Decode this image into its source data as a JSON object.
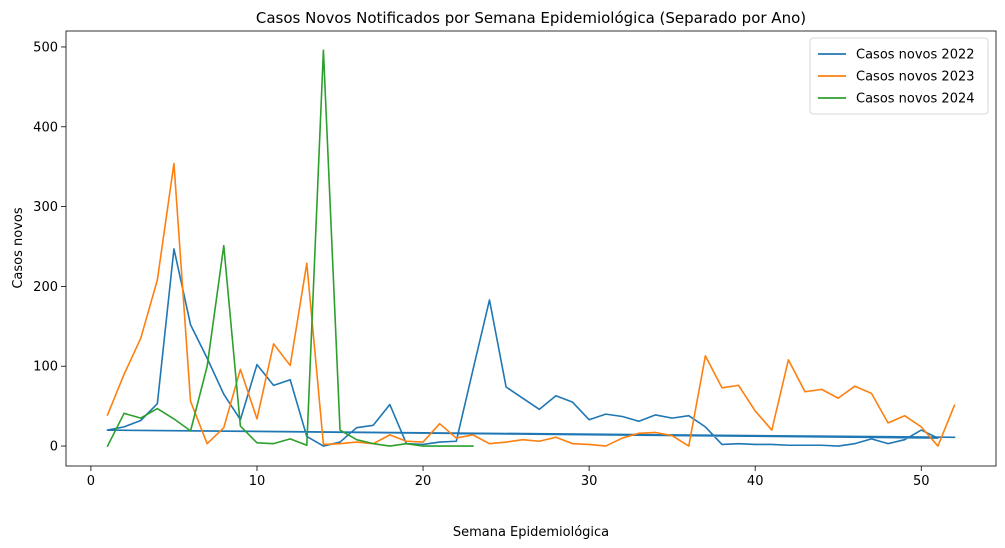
{
  "chart_data": {
    "type": "line",
    "title": "Casos Novos Notificados por Semana Epidemiológica (Separado por Ano)",
    "xlabel": "Semana Epidemiológica",
    "ylabel": "Casos novos",
    "xlim": [
      -1.5,
      54.5
    ],
    "ylim": [
      -25,
      520
    ],
    "xticks": [
      0,
      10,
      20,
      30,
      40,
      50
    ],
    "yticks": [
      0,
      100,
      200,
      300,
      400,
      500
    ],
    "grid": false,
    "legend_position": "top-right",
    "series": [
      {
        "name": "Casos novos 2022",
        "color": "#1f77b4",
        "points": [
          [
            1,
            20
          ],
          [
            2,
            24
          ],
          [
            3,
            32
          ],
          [
            4,
            53
          ],
          [
            5,
            247
          ],
          [
            6,
            152
          ],
          [
            7,
            110
          ],
          [
            8,
            65
          ],
          [
            9,
            33
          ],
          [
            10,
            102
          ],
          [
            11,
            76
          ],
          [
            12,
            83
          ],
          [
            13,
            12
          ],
          [
            14,
            0
          ],
          [
            15,
            5
          ],
          [
            16,
            23
          ],
          [
            17,
            26
          ],
          [
            18,
            52
          ],
          [
            19,
            3
          ],
          [
            20,
            2
          ],
          [
            21,
            5
          ],
          [
            22,
            6
          ],
          [
            23,
            95
          ],
          [
            24,
            183
          ],
          [
            25,
            74
          ],
          [
            26,
            60
          ],
          [
            27,
            46
          ],
          [
            28,
            63
          ],
          [
            29,
            55
          ],
          [
            30,
            33
          ],
          [
            31,
            40
          ],
          [
            32,
            37
          ],
          [
            33,
            31
          ],
          [
            34,
            39
          ],
          [
            35,
            35
          ],
          [
            36,
            38
          ],
          [
            37,
            24
          ],
          [
            38,
            2
          ],
          [
            39,
            3
          ],
          [
            40,
            2
          ],
          [
            41,
            2
          ],
          [
            42,
            1
          ],
          [
            43,
            1
          ],
          [
            44,
            1
          ],
          [
            45,
            0
          ],
          [
            46,
            3
          ],
          [
            47,
            9
          ],
          [
            48,
            3
          ],
          [
            49,
            8
          ],
          [
            50,
            20
          ],
          [
            51,
            10
          ],
          [
            1,
            20
          ],
          [
            52,
            11
          ]
        ]
      },
      {
        "name": "Casos novos 2023",
        "color": "#ff7f0e",
        "points": [
          [
            1,
            39
          ],
          [
            2,
            90
          ],
          [
            3,
            135
          ],
          [
            4,
            208
          ],
          [
            5,
            354
          ],
          [
            6,
            56
          ],
          [
            7,
            3
          ],
          [
            8,
            23
          ],
          [
            9,
            96
          ],
          [
            10,
            34
          ],
          [
            11,
            128
          ],
          [
            12,
            101
          ],
          [
            13,
            229
          ],
          [
            14,
            2
          ],
          [
            15,
            3
          ],
          [
            16,
            5
          ],
          [
            17,
            3
          ],
          [
            18,
            14
          ],
          [
            19,
            6
          ],
          [
            20,
            5
          ],
          [
            21,
            28
          ],
          [
            22,
            10
          ],
          [
            23,
            14
          ],
          [
            24,
            3
          ],
          [
            25,
            5
          ],
          [
            26,
            8
          ],
          [
            27,
            6
          ],
          [
            28,
            11
          ],
          [
            29,
            3
          ],
          [
            30,
            2
          ],
          [
            31,
            0
          ],
          [
            32,
            10
          ],
          [
            33,
            16
          ],
          [
            34,
            17
          ],
          [
            35,
            13
          ],
          [
            36,
            0
          ],
          [
            37,
            113
          ],
          [
            38,
            73
          ],
          [
            39,
            76
          ],
          [
            40,
            44
          ],
          [
            41,
            20
          ],
          [
            42,
            108
          ],
          [
            43,
            68
          ],
          [
            44,
            71
          ],
          [
            45,
            60
          ],
          [
            46,
            75
          ],
          [
            47,
            66
          ],
          [
            48,
            29
          ],
          [
            49,
            38
          ],
          [
            50,
            24
          ],
          [
            51,
            0
          ],
          [
            52,
            51
          ]
        ]
      },
      {
        "name": "Casos novos 2024",
        "color": "#2ca02c",
        "points": [
          [
            1,
            0
          ],
          [
            2,
            41
          ],
          [
            3,
            35
          ],
          [
            4,
            47
          ],
          [
            5,
            34
          ],
          [
            6,
            19
          ],
          [
            7,
            100
          ],
          [
            8,
            251
          ],
          [
            9,
            25
          ],
          [
            10,
            4
          ],
          [
            11,
            3
          ],
          [
            12,
            9
          ],
          [
            13,
            1
          ],
          [
            14,
            496
          ],
          [
            15,
            20
          ],
          [
            16,
            8
          ],
          [
            17,
            3
          ],
          [
            18,
            0
          ],
          [
            19,
            3
          ],
          [
            20,
            0
          ],
          [
            21,
            0
          ],
          [
            22,
            0
          ],
          [
            23,
            0
          ]
        ]
      }
    ]
  }
}
